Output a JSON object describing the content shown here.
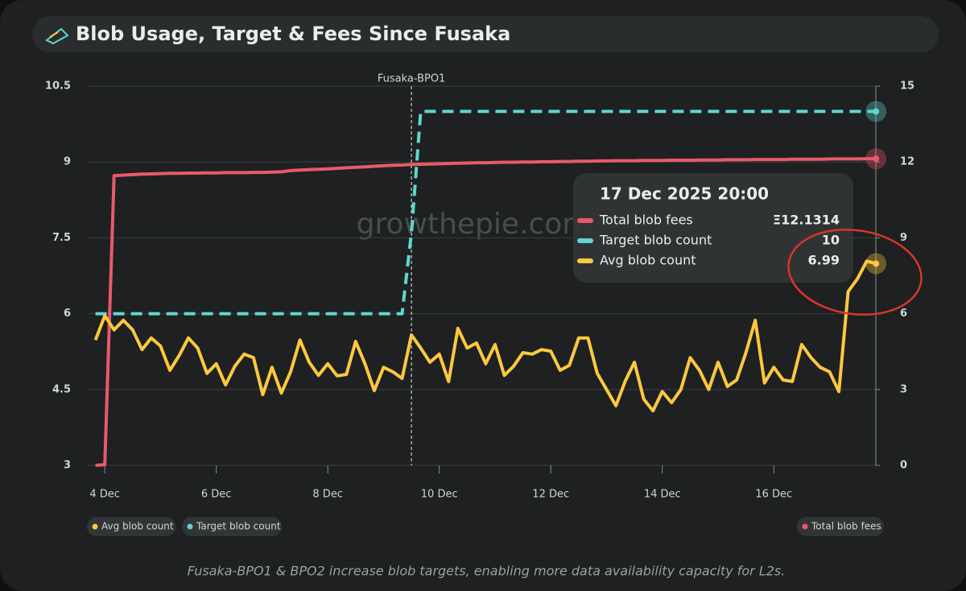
{
  "chart_data": {
    "type": "line",
    "title": "Blob Usage, Target & Fees Since Fusaka",
    "caption": "Fusaka-BPO1 & BPO2 increase blob targets, enabling more data availability capacity for L2s.",
    "watermark": "growthepie.com",
    "x": [
      3.833,
      4,
      4.167,
      4.333,
      4.5,
      4.667,
      4.833,
      5,
      5.167,
      5.333,
      5.5,
      5.667,
      5.833,
      6,
      6.167,
      6.333,
      6.5,
      6.667,
      6.833,
      7,
      7.167,
      7.333,
      7.5,
      7.667,
      7.833,
      8,
      8.167,
      8.333,
      8.5,
      8.667,
      8.833,
      9,
      9.167,
      9.333,
      9.5,
      9.667,
      9.833,
      10,
      10.167,
      10.333,
      10.5,
      10.667,
      10.833,
      11,
      11.167,
      11.333,
      11.5,
      11.667,
      11.833,
      12,
      12.167,
      12.333,
      12.5,
      12.667,
      12.833,
      13,
      13.167,
      13.333,
      13.5,
      13.667,
      13.833,
      14,
      14.167,
      14.333,
      14.5,
      14.667,
      14.833,
      15,
      15.167,
      15.333,
      15.5,
      15.667,
      15.833,
      16,
      16.167,
      16.333,
      16.5,
      16.667,
      16.833,
      17,
      17.167,
      17.333,
      17.5,
      17.667,
      17.833
    ],
    "xlim": [
      3.68,
      17.83
    ],
    "xticks": [
      {
        "value": 4,
        "label": "4 Dec"
      },
      {
        "value": 6,
        "label": "6 Dec"
      },
      {
        "value": 8,
        "label": "8 Dec"
      },
      {
        "value": 10,
        "label": "10 Dec"
      },
      {
        "value": 12,
        "label": "12 Dec"
      },
      {
        "value": 14,
        "label": "14 Dec"
      },
      {
        "value": 16,
        "label": "16 Dec"
      }
    ],
    "ylim": [
      3,
      10.5
    ],
    "yticks": [
      3,
      4.5,
      6,
      7.5,
      9,
      10.5
    ],
    "y2lim": [
      0,
      15
    ],
    "y2ticks": [
      0,
      3,
      6,
      9,
      12,
      15
    ],
    "grid": true,
    "series": [
      {
        "name": "Total blob fees",
        "color": "#e85a6a",
        "axis": "y2",
        "values": [
          0,
          0.03,
          11.46,
          11.48,
          11.5,
          11.52,
          11.53,
          11.54,
          11.55,
          11.55,
          11.56,
          11.56,
          11.57,
          11.57,
          11.58,
          11.58,
          11.58,
          11.59,
          11.59,
          11.6,
          11.61,
          11.66,
          11.68,
          11.7,
          11.71,
          11.73,
          11.75,
          11.77,
          11.79,
          11.81,
          11.83,
          11.85,
          11.87,
          11.88,
          11.9,
          11.91,
          11.92,
          11.93,
          11.94,
          11.95,
          11.96,
          11.97,
          11.97,
          11.98,
          11.99,
          11.99,
          12,
          12,
          12.01,
          12.01,
          12.02,
          12.02,
          12.03,
          12.03,
          12.04,
          12.04,
          12.05,
          12.05,
          12.05,
          12.06,
          12.06,
          12.06,
          12.07,
          12.07,
          12.07,
          12.08,
          12.08,
          12.08,
          12.09,
          12.09,
          12.09,
          12.1,
          12.1,
          12.1,
          12.1,
          12.11,
          12.11,
          12.11,
          12.11,
          12.12,
          12.12,
          12.12,
          12.12,
          12.13,
          12.1314
        ]
      },
      {
        "name": "Target blob count",
        "color": "#5fd6d0",
        "dashed": true,
        "values": [
          6,
          6,
          6,
          6,
          6,
          6,
          6,
          6,
          6,
          6,
          6,
          6,
          6,
          6,
          6,
          6,
          6,
          6,
          6,
          6,
          6,
          6,
          6,
          6,
          6,
          6,
          6,
          6,
          6,
          6,
          6,
          6,
          6,
          6,
          7.6,
          10,
          10,
          10,
          10,
          10,
          10,
          10,
          10,
          10,
          10,
          10,
          10,
          10,
          10,
          10,
          10,
          10,
          10,
          10,
          10,
          10,
          10,
          10,
          10,
          10,
          10,
          10,
          10,
          10,
          10,
          10,
          10,
          10,
          10,
          10,
          10,
          10,
          10,
          10,
          10,
          10,
          10,
          10,
          10,
          10,
          10,
          10,
          10,
          10,
          10
        ]
      },
      {
        "name": "Avg blob count",
        "color": "#fcc83f",
        "values": [
          5.48,
          5.96,
          5.68,
          5.87,
          5.68,
          5.29,
          5.52,
          5.36,
          4.88,
          5.17,
          5.52,
          5.32,
          4.82,
          5.01,
          4.59,
          4.96,
          5.2,
          5.13,
          4.4,
          4.94,
          4.43,
          4.85,
          5.48,
          5.04,
          4.78,
          5.01,
          4.77,
          4.8,
          5.45,
          5.01,
          4.48,
          4.94,
          4.85,
          4.72,
          5.58,
          5.32,
          5.04,
          5.2,
          4.66,
          5.71,
          5.32,
          5.42,
          5.01,
          5.39,
          4.78,
          4.96,
          5.23,
          5.2,
          5.29,
          5.26,
          4.88,
          4.98,
          5.52,
          5.52,
          4.82,
          4.5,
          4.18,
          4.66,
          5.04,
          4.31,
          4.08,
          4.46,
          4.24,
          4.5,
          5.13,
          4.88,
          4.5,
          5.04,
          4.56,
          4.69,
          5.23,
          5.87,
          4.63,
          4.94,
          4.69,
          4.66,
          5.39,
          5.13,
          4.94,
          4.85,
          4.46,
          6.44,
          6.69,
          7.04,
          6.99
        ]
      }
    ],
    "annotation": {
      "text": "Fusaka-BPO1",
      "x": 9.5
    },
    "tooltip": {
      "title": "17 Dec 2025 20:00",
      "labels": [
        "Ξ12.1314",
        "10",
        "6.99"
      ]
    }
  }
}
